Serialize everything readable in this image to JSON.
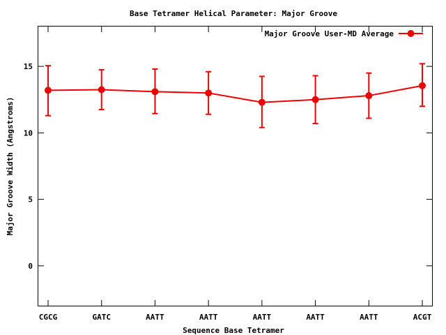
{
  "chart_data": {
    "type": "line",
    "title": "Base Tetramer Helical Parameter: Major Groove",
    "xlabel": "Sequence Base Tetramer",
    "ylabel": "Major Groove Width (Angstroms)",
    "categories": [
      "CGCG",
      "GATC",
      "AATT",
      "AATT",
      "AATT",
      "AATT",
      "AATT",
      "ACGT"
    ],
    "ylim": [
      -3,
      18
    ],
    "yticks": [
      0,
      5,
      10,
      15
    ],
    "grid": false,
    "legend_position": "top-right",
    "series": [
      {
        "name": "Major Groove User-MD Average",
        "color": "#ee0000",
        "values": [
          13.2,
          13.25,
          13.1,
          13.0,
          12.3,
          12.5,
          12.8,
          13.55
        ],
        "err_low": [
          11.3,
          11.75,
          11.45,
          11.4,
          10.4,
          10.7,
          11.1,
          12.0
        ],
        "err_high": [
          15.05,
          14.75,
          14.8,
          14.6,
          14.25,
          14.3,
          14.5,
          15.2
        ]
      }
    ]
  }
}
